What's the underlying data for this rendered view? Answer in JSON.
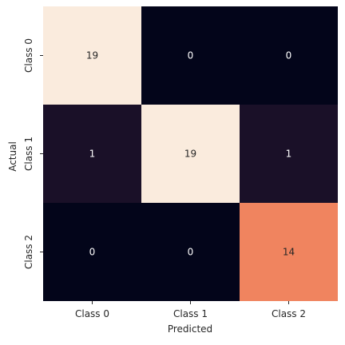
{
  "chart_data": {
    "type": "heatmap",
    "title": "",
    "xlabel": "Predicted",
    "ylabel": "Actual",
    "x_categories": [
      "Class 0",
      "Class 1",
      "Class 2"
    ],
    "y_categories": [
      "Class 0",
      "Class 1",
      "Class 2"
    ],
    "values": [
      [
        19,
        0,
        0
      ],
      [
        1,
        19,
        1
      ],
      [
        0,
        0,
        14
      ]
    ],
    "value_range": [
      0,
      19
    ],
    "colormap": "rocket",
    "colorbar": false,
    "annotations": true,
    "cell_colors": [
      [
        "#faebdd",
        "#03051a",
        "#03051a"
      ],
      [
        "#1a1028",
        "#faebdd",
        "#1a1028"
      ],
      [
        "#03051a",
        "#03051a",
        "#f0845f"
      ]
    ]
  }
}
